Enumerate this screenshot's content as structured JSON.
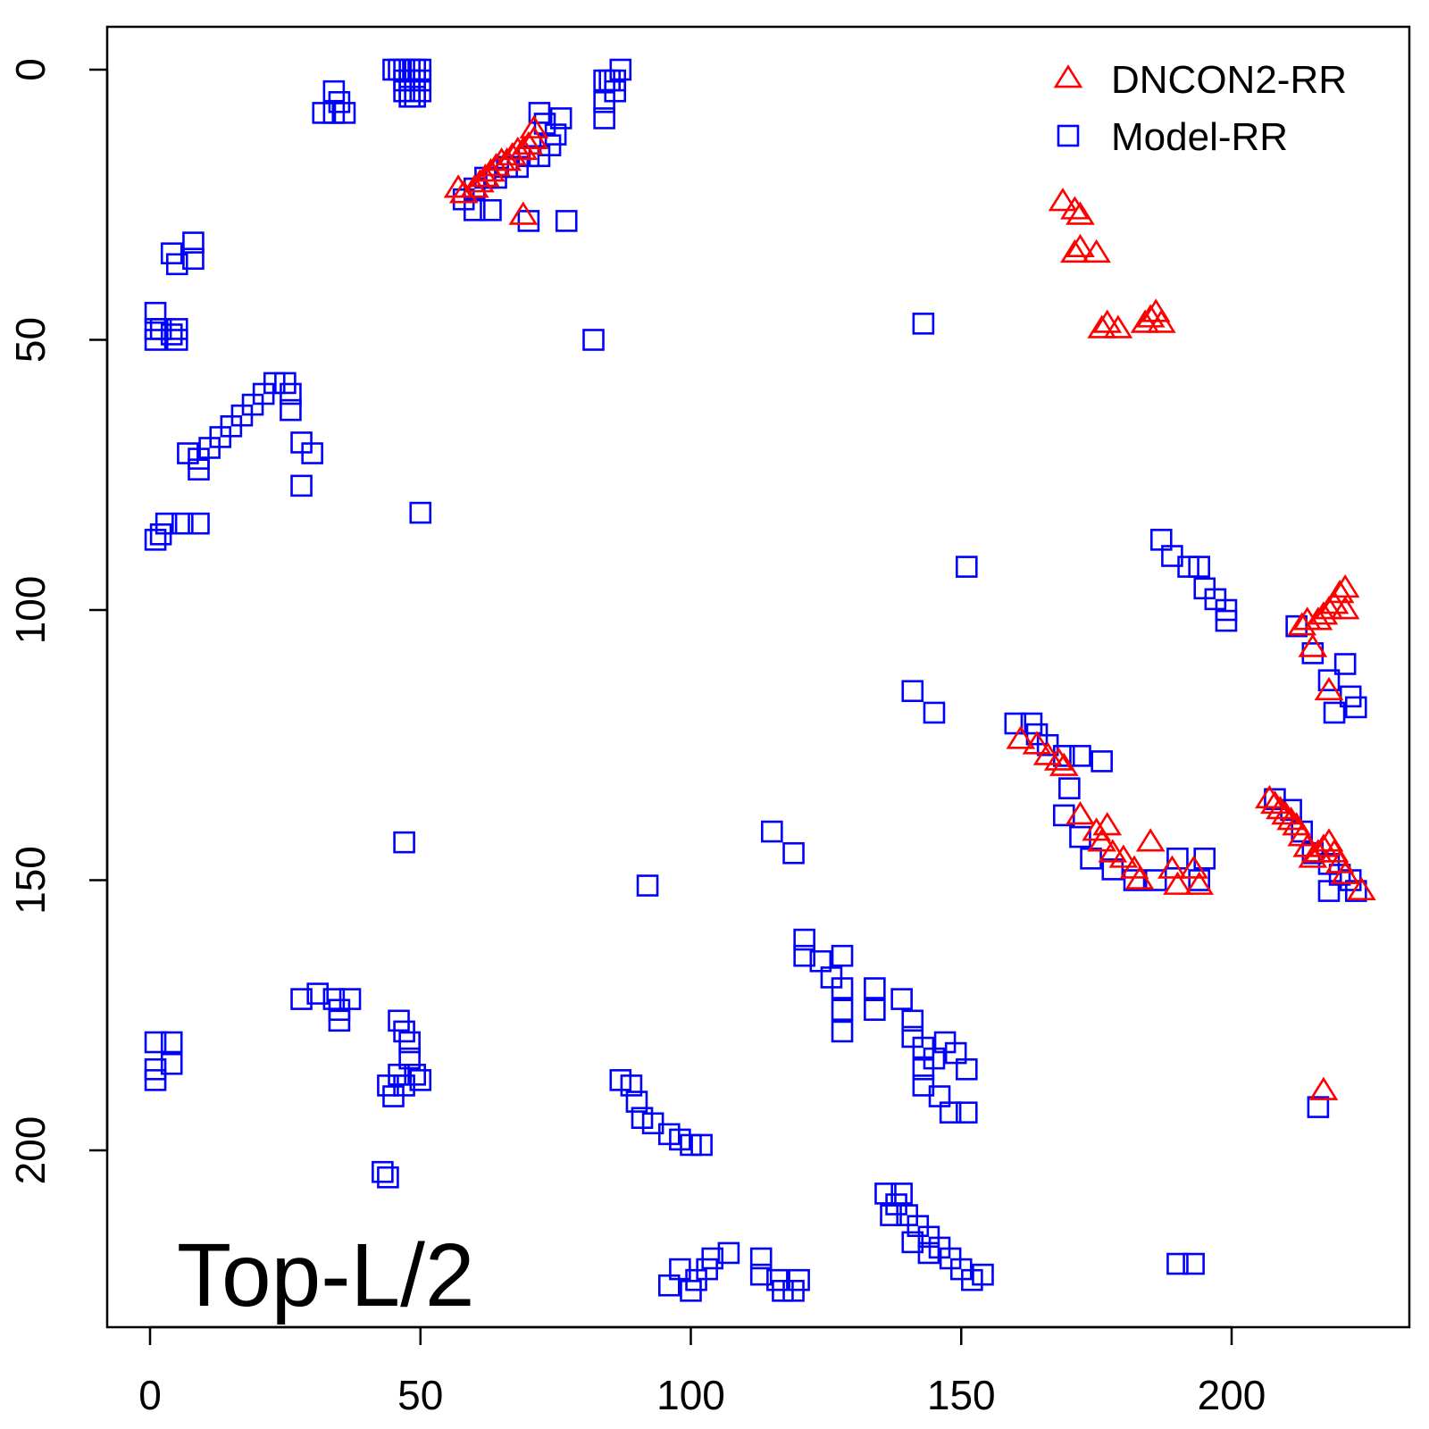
{
  "chart_data": {
    "type": "scatter",
    "title": "",
    "xlabel": "",
    "ylabel": "",
    "xlim": [
      -8,
      232
    ],
    "ylim": [
      232,
      -8
    ],
    "y_reversed": true,
    "x_ticks": [
      0,
      50,
      100,
      150,
      200
    ],
    "y_ticks": [
      0,
      50,
      100,
      150,
      200
    ],
    "grid": false,
    "legend_position": "top-right",
    "legend": [
      {
        "label": "DNCON2-RR",
        "marker": "triangle",
        "color": "#ff0000"
      },
      {
        "label": "Model-RR",
        "marker": "square",
        "color": "#0000ff"
      }
    ],
    "annotation": "Top-L/2",
    "series": [
      {
        "name": "Model-RR",
        "marker": "square",
        "color": "#0000ff",
        "points": [
          [
            46,
            0
          ],
          [
            47,
            0
          ],
          [
            48,
            0
          ],
          [
            49,
            0
          ],
          [
            50,
            0
          ],
          [
            45,
            0
          ],
          [
            47,
            2
          ],
          [
            48,
            2
          ],
          [
            49,
            2
          ],
          [
            50,
            2
          ],
          [
            47,
            4
          ],
          [
            48,
            4
          ],
          [
            49,
            4
          ],
          [
            50,
            4
          ],
          [
            48,
            5
          ],
          [
            49,
            5
          ],
          [
            34,
            4
          ],
          [
            35,
            6
          ],
          [
            36,
            8
          ],
          [
            32,
            8
          ],
          [
            34,
            8
          ],
          [
            84,
            2
          ],
          [
            85,
            2
          ],
          [
            86,
            2
          ],
          [
            87,
            0
          ],
          [
            86,
            4
          ],
          [
            84,
            6
          ],
          [
            84,
            9
          ],
          [
            72,
            8
          ],
          [
            73,
            10
          ],
          [
            75,
            12
          ],
          [
            76,
            9
          ],
          [
            74,
            14
          ],
          [
            72,
            16
          ],
          [
            70,
            16
          ],
          [
            68,
            18
          ],
          [
            66,
            18
          ],
          [
            64,
            20
          ],
          [
            62,
            20
          ],
          [
            60,
            22
          ],
          [
            58,
            24
          ],
          [
            60,
            26
          ],
          [
            63,
            26
          ],
          [
            70,
            28
          ],
          [
            77,
            28
          ],
          [
            4,
            34
          ],
          [
            5,
            36
          ],
          [
            8,
            35
          ],
          [
            8,
            32
          ],
          [
            1,
            45
          ],
          [
            1,
            48
          ],
          [
            1,
            50
          ],
          [
            2,
            48
          ],
          [
            4,
            49
          ],
          [
            5,
            48
          ],
          [
            5,
            50
          ],
          [
            82,
            50
          ],
          [
            143,
            47
          ],
          [
            25,
            58
          ],
          [
            23,
            58
          ],
          [
            21,
            60
          ],
          [
            19,
            62
          ],
          [
            17,
            64
          ],
          [
            15,
            66
          ],
          [
            13,
            68
          ],
          [
            11,
            70
          ],
          [
            9,
            72
          ],
          [
            7,
            71
          ],
          [
            9,
            74
          ],
          [
            26,
            60
          ],
          [
            26,
            63
          ],
          [
            28,
            69
          ],
          [
            30,
            71
          ],
          [
            28,
            77
          ],
          [
            3,
            84
          ],
          [
            2,
            86
          ],
          [
            1,
            87
          ],
          [
            6,
            84
          ],
          [
            9,
            84
          ],
          [
            50,
            82
          ],
          [
            151,
            92
          ],
          [
            187,
            87
          ],
          [
            189,
            90
          ],
          [
            192,
            92
          ],
          [
            194,
            92
          ],
          [
            195,
            96
          ],
          [
            197,
            98
          ],
          [
            199,
            100
          ],
          [
            199,
            102
          ],
          [
            212,
            103
          ],
          [
            215,
            108
          ],
          [
            218,
            113
          ],
          [
            221,
            110
          ],
          [
            222,
            116
          ],
          [
            223,
            118
          ],
          [
            219,
            119
          ],
          [
            141,
            115
          ],
          [
            145,
            119
          ],
          [
            160,
            121
          ],
          [
            163,
            121
          ],
          [
            164,
            123
          ],
          [
            166,
            125
          ],
          [
            169,
            127
          ],
          [
            172,
            127
          ],
          [
            176,
            128
          ],
          [
            170,
            133
          ],
          [
            169,
            138
          ],
          [
            172,
            142
          ],
          [
            174,
            146
          ],
          [
            178,
            148
          ],
          [
            182,
            150
          ],
          [
            186,
            150
          ],
          [
            190,
            146
          ],
          [
            194,
            150
          ],
          [
            195,
            146
          ],
          [
            208,
            135
          ],
          [
            211,
            137
          ],
          [
            213,
            141
          ],
          [
            215,
            145
          ],
          [
            218,
            147
          ],
          [
            220,
            149
          ],
          [
            222,
            150
          ],
          [
            223,
            152
          ],
          [
            218,
            152
          ],
          [
            47,
            143
          ],
          [
            92,
            151
          ],
          [
            115,
            141
          ],
          [
            119,
            145
          ],
          [
            121,
            161
          ],
          [
            121,
            164
          ],
          [
            124,
            165
          ],
          [
            126,
            168
          ],
          [
            128,
            164
          ],
          [
            128,
            170
          ],
          [
            128,
            174
          ],
          [
            128,
            178
          ],
          [
            134,
            170
          ],
          [
            134,
            174
          ],
          [
            139,
            172
          ],
          [
            141,
            176
          ],
          [
            141,
            179
          ],
          [
            143,
            181
          ],
          [
            145,
            183
          ],
          [
            147,
            180
          ],
          [
            149,
            182
          ],
          [
            151,
            185
          ],
          [
            143,
            185
          ],
          [
            143,
            188
          ],
          [
            146,
            190
          ],
          [
            148,
            193
          ],
          [
            151,
            193
          ],
          [
            1,
            180
          ],
          [
            1,
            185
          ],
          [
            1,
            187
          ],
          [
            4,
            180
          ],
          [
            4,
            184
          ],
          [
            28,
            172
          ],
          [
            31,
            171
          ],
          [
            34,
            172
          ],
          [
            35,
            174
          ],
          [
            37,
            172
          ],
          [
            35,
            176
          ],
          [
            46,
            176
          ],
          [
            47,
            178
          ],
          [
            48,
            180
          ],
          [
            48,
            183
          ],
          [
            46,
            186
          ],
          [
            44,
            188
          ],
          [
            45,
            190
          ],
          [
            47,
            188
          ],
          [
            49,
            186
          ],
          [
            50,
            187
          ],
          [
            43,
            204
          ],
          [
            44,
            205
          ],
          [
            87,
            187
          ],
          [
            89,
            188
          ],
          [
            90,
            191
          ],
          [
            91,
            194
          ],
          [
            93,
            195
          ],
          [
            96,
            197
          ],
          [
            98,
            198
          ],
          [
            100,
            199
          ],
          [
            102,
            199
          ],
          [
            136,
            208
          ],
          [
            138,
            210
          ],
          [
            140,
            212
          ],
          [
            142,
            214
          ],
          [
            144,
            216
          ],
          [
            146,
            218
          ],
          [
            148,
            220
          ],
          [
            150,
            222
          ],
          [
            152,
            224
          ],
          [
            154,
            223
          ],
          [
            139,
            208
          ],
          [
            137,
            212
          ],
          [
            141,
            217
          ],
          [
            144,
            219
          ],
          [
            96,
            225
          ],
          [
            98,
            222
          ],
          [
            100,
            226
          ],
          [
            101,
            224
          ],
          [
            103,
            222
          ],
          [
            104,
            220
          ],
          [
            107,
            219
          ],
          [
            113,
            220
          ],
          [
            113,
            223
          ],
          [
            116,
            224
          ],
          [
            117,
            226
          ],
          [
            120,
            224
          ],
          [
            119,
            226
          ],
          [
            190,
            221
          ],
          [
            193,
            221
          ],
          [
            216,
            192
          ]
        ]
      },
      {
        "name": "DNCON2-RR",
        "marker": "triangle",
        "color": "#ff0000",
        "points": [
          [
            57,
            22
          ],
          [
            58,
            23
          ],
          [
            60,
            22
          ],
          [
            61,
            21
          ],
          [
            62,
            20
          ],
          [
            63,
            19
          ],
          [
            64,
            18
          ],
          [
            65,
            17
          ],
          [
            66,
            17
          ],
          [
            67,
            16
          ],
          [
            68,
            15
          ],
          [
            69,
            15
          ],
          [
            70,
            14
          ],
          [
            71,
            13
          ],
          [
            71,
            11
          ],
          [
            69,
            27
          ],
          [
            171,
            26
          ],
          [
            172,
            27
          ],
          [
            171,
            34
          ],
          [
            172,
            33
          ],
          [
            175,
            34
          ],
          [
            176,
            48
          ],
          [
            177,
            47
          ],
          [
            179,
            48
          ],
          [
            184,
            47
          ],
          [
            185,
            46
          ],
          [
            186,
            45
          ],
          [
            187,
            47
          ],
          [
            213,
            103
          ],
          [
            214,
            102
          ],
          [
            215,
            107
          ],
          [
            216,
            102
          ],
          [
            217,
            101
          ],
          [
            218,
            100
          ],
          [
            219,
            99
          ],
          [
            220,
            97
          ],
          [
            221,
            96
          ],
          [
            221,
            100
          ],
          [
            218,
            115
          ],
          [
            161,
            124
          ],
          [
            164,
            125
          ],
          [
            166,
            127
          ],
          [
            168,
            128
          ],
          [
            169,
            129
          ],
          [
            172,
            138
          ],
          [
            175,
            141
          ],
          [
            177,
            140
          ],
          [
            176,
            143
          ],
          [
            178,
            145
          ],
          [
            180,
            146
          ],
          [
            182,
            148
          ],
          [
            183,
            150
          ],
          [
            185,
            143
          ],
          [
            189,
            148
          ],
          [
            190,
            151
          ],
          [
            193,
            148
          ],
          [
            194,
            151
          ],
          [
            207,
            135
          ],
          [
            208,
            136
          ],
          [
            209,
            137
          ],
          [
            210,
            138
          ],
          [
            211,
            139
          ],
          [
            212,
            140
          ],
          [
            213,
            142
          ],
          [
            214,
            144
          ],
          [
            215,
            146
          ],
          [
            216,
            145
          ],
          [
            217,
            144
          ],
          [
            218,
            143
          ],
          [
            219,
            145
          ],
          [
            220,
            147
          ],
          [
            221,
            149
          ],
          [
            224,
            152
          ],
          [
            217,
            189
          ]
        ]
      }
    ]
  }
}
